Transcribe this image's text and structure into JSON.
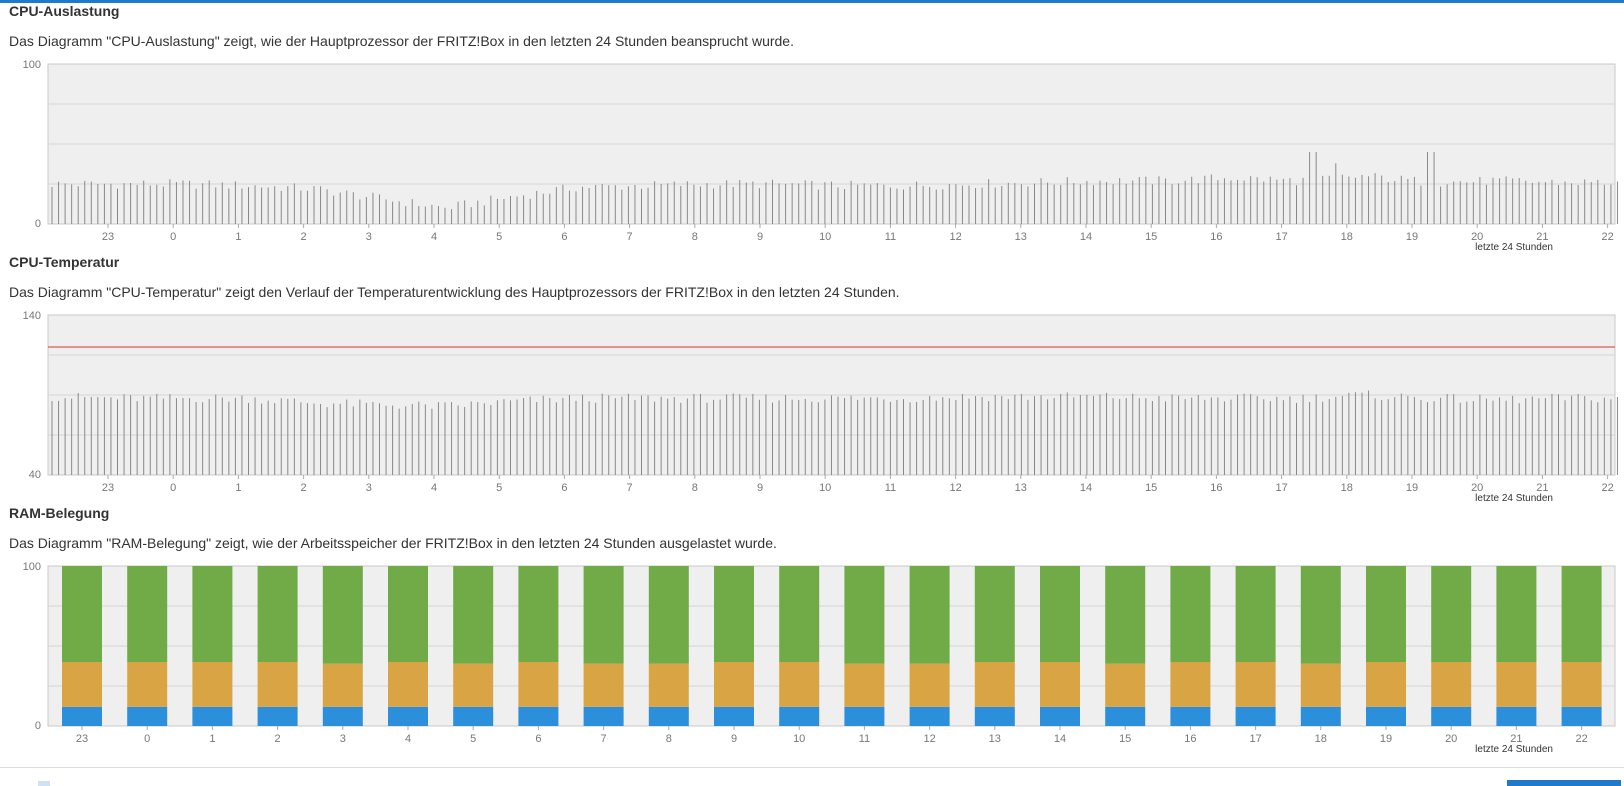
{
  "colors": {
    "accent": "#1f7acc",
    "plot_bg": "#efefef",
    "grid": "#d6d6d6",
    "cpu_bar": "#888888",
    "threshold": "#e05a50",
    "ram_green": "#70ab48",
    "ram_orange": "#d9a443",
    "ram_blue": "#2b8fdc"
  },
  "sections": {
    "cpu_load": {
      "title": "CPU-Auslastung",
      "description": "Das Diagramm \"CPU-Auslastung\" zeigt, wie der Hauptprozessor der FRITZ!Box in den letzten 24 Stunden beansprucht wurde."
    },
    "cpu_temp": {
      "title": "CPU-Temperatur",
      "description": "Das Diagramm \"CPU-Temperatur\" zeigt den Verlauf der Temperaturentwicklung des Hauptprozessors der FRITZ!Box in den letzten 24 Stunden."
    },
    "ram": {
      "title": "RAM-Belegung",
      "description": "Das Diagramm \"RAM-Belegung\" zeigt, wie der Arbeitsspeicher der FRITZ!Box in den letzten 24 Stunden ausgelastet wurde."
    }
  },
  "chart_data": [
    {
      "id": "cpu_load",
      "type": "bar",
      "ylim": [
        0,
        100
      ],
      "y_tick_labels": [
        "100",
        "0"
      ],
      "x_tick_labels": [
        "23",
        "0",
        "1",
        "2",
        "3",
        "4",
        "5",
        "6",
        "7",
        "8",
        "9",
        "10",
        "11",
        "12",
        "13",
        "14",
        "15",
        "16",
        "17",
        "18",
        "19",
        "20",
        "21",
        "22"
      ],
      "footnote": "letzte 24 Stunden",
      "grid": true,
      "hourly_levels": [
        25,
        25,
        25,
        24,
        22,
        16,
        10,
        17,
        23,
        24,
        25,
        25,
        24,
        24,
        25,
        26,
        27,
        27,
        29,
        27,
        30,
        26,
        27,
        26
      ],
      "peaks": [
        {
          "hour": 19.2,
          "value": 45
        },
        {
          "hour": 19.55,
          "value": 38
        },
        {
          "hour": 21.0,
          "value": 45
        }
      ]
    },
    {
      "id": "cpu_temp",
      "type": "bar",
      "ylim": [
        40,
        140
      ],
      "y_tick_labels": [
        "140",
        "40"
      ],
      "x_tick_labels": [
        "23",
        "0",
        "1",
        "2",
        "3",
        "4",
        "5",
        "6",
        "7",
        "8",
        "9",
        "10",
        "11",
        "12",
        "13",
        "14",
        "15",
        "16",
        "17",
        "18",
        "19",
        "20",
        "21",
        "22"
      ],
      "footnote": "letzte 24 Stunden",
      "grid": true,
      "threshold": 120,
      "hourly_levels": [
        89,
        88,
        88,
        88,
        85,
        84,
        83,
        86,
        88,
        88,
        88,
        88,
        88,
        88,
        89,
        89,
        89,
        88,
        88,
        88,
        90,
        88,
        87,
        88
      ]
    },
    {
      "id": "ram",
      "type": "bar",
      "stacked": true,
      "ylim": [
        0,
        100
      ],
      "y_tick_labels": [
        "100",
        "0"
      ],
      "categories": [
        "23",
        "0",
        "1",
        "2",
        "3",
        "4",
        "5",
        "6",
        "7",
        "8",
        "9",
        "10",
        "11",
        "12",
        "13",
        "14",
        "15",
        "16",
        "17",
        "18",
        "19",
        "20",
        "21",
        "22"
      ],
      "footnote": "letzte 24 Stunden",
      "grid": true,
      "series": [
        {
          "color": "#2b8fdc",
          "values": [
            12,
            12,
            12,
            12,
            12,
            12,
            12,
            12,
            12,
            12,
            12,
            12,
            12,
            12,
            12,
            12,
            12,
            12,
            12,
            12,
            12,
            12,
            12,
            12
          ]
        },
        {
          "color": "#d9a443",
          "values": [
            28,
            28,
            28,
            28,
            27,
            28,
            27,
            28,
            27,
            27,
            28,
            28,
            27,
            27,
            28,
            28,
            27,
            28,
            28,
            27,
            28,
            28,
            28,
            28
          ]
        },
        {
          "color": "#70ab48",
          "values": [
            60,
            60,
            60,
            60,
            61,
            60,
            61,
            60,
            61,
            61,
            60,
            60,
            61,
            61,
            60,
            60,
            61,
            60,
            60,
            61,
            60,
            60,
            60,
            60
          ]
        }
      ]
    }
  ]
}
